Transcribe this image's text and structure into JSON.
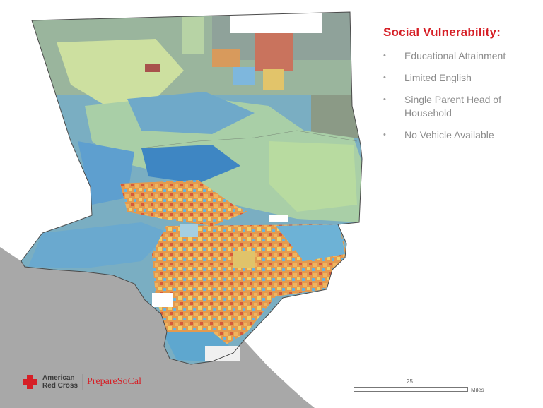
{
  "panel": {
    "title": "Social Vulnerability:",
    "bullets": [
      "Educational Attainment",
      "Limited English",
      "Single Parent Head of Household",
      "No Vehicle Available"
    ]
  },
  "logo": {
    "org_line1": "American",
    "org_line2": "Red Cross",
    "brand_prefix": "Prepare",
    "brand_suffix": "SoCal",
    "icon": "red-cross-icon"
  },
  "scale_bar": {
    "value": "25",
    "unit": "Miles"
  },
  "colors": {
    "accent_red": "#d61f26",
    "ocean": "#a8a8a8",
    "low_vulnerability": "#5aa6d3",
    "medium_vulnerability": "#b6d9a8",
    "high_vulnerability": "#e57f3a",
    "very_high_vulnerability": "#c8443a",
    "no_data": "#8f8f8f"
  }
}
